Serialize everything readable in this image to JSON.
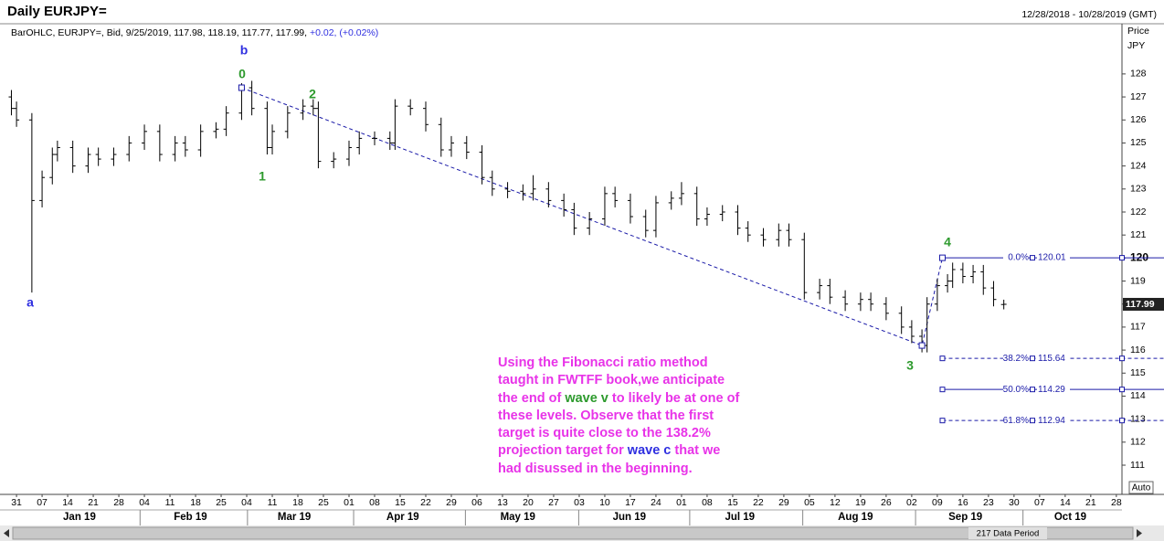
{
  "chart_data": {
    "type": "ohlc",
    "title": "Daily EURJPY=",
    "date_range": "12/28/2018 - 10/28/2019 (GMT)",
    "info": "BarOHLC, EURJPY=, Bid, 9/25/2019, 117.98, 118.19, 117.77, 117.99,",
    "change": "+0.02, (+0.02%)",
    "y_label": "Price",
    "y_unit": "JPY",
    "last_price": 117.99,
    "auto_button": "Auto",
    "data_period": "217 Data Period",
    "color": "#000000",
    "x": [
      -1,
      0,
      3,
      5,
      7,
      8,
      11,
      14,
      16,
      19,
      22,
      25,
      28,
      31,
      33,
      36,
      39,
      41,
      44,
      46,
      49,
      50,
      53,
      56,
      58,
      59,
      62,
      65,
      67,
      70,
      73,
      74,
      77,
      80,
      83,
      85,
      88,
      91,
      93,
      96,
      99,
      101,
      104,
      107,
      109,
      112,
      115,
      117,
      120,
      123,
      125,
      128,
      130,
      133,
      135,
      138,
      141,
      143,
      146,
      149,
      151,
      154,
      157,
      159,
      162,
      165,
      167,
      170,
      173,
      175,
      177,
      178,
      180,
      182,
      183,
      185,
      187,
      189,
      191,
      193
    ],
    "open": [
      127.0,
      126.5,
      126.0,
      122.5,
      123.5,
      124.5,
      124.8,
      124.0,
      124.5,
      124.3,
      124.5,
      125.0,
      125.5,
      124.5,
      125.0,
      124.7,
      125.5,
      125.6,
      126.3,
      127.4,
      126.5,
      124.8,
      125.5,
      126.3,
      126.6,
      126.5,
      124.2,
      124.3,
      124.8,
      125.2,
      125.2,
      125.0,
      126.6,
      126.5,
      125.8,
      124.7,
      125.0,
      124.6,
      123.5,
      123.0,
      122.9,
      122.8,
      123.0,
      122.5,
      122.1,
      121.3,
      121.7,
      122.8,
      122.5,
      121.8,
      121.2,
      122.4,
      122.6,
      122.8,
      121.7,
      121.9,
      122.0,
      121.3,
      121.0,
      120.8,
      121.2,
      120.8,
      118.5,
      118.8,
      118.3,
      118.0,
      118.2,
      118.0,
      117.6,
      117.0,
      116.6,
      116.2,
      118.0,
      118.8,
      119.0,
      119.5,
      119.2,
      119.4,
      118.7,
      117.98
    ],
    "high": [
      127.3,
      126.8,
      126.3,
      123.8,
      124.8,
      125.1,
      125.1,
      124.8,
      124.8,
      124.8,
      125.3,
      125.8,
      125.8,
      125.3,
      125.3,
      125.8,
      125.9,
      126.6,
      127.6,
      127.7,
      126.8,
      125.8,
      126.6,
      126.9,
      126.9,
      126.8,
      124.6,
      125.1,
      125.5,
      125.5,
      125.5,
      126.9,
      126.9,
      126.8,
      126.1,
      125.3,
      125.3,
      124.9,
      123.8,
      123.3,
      123.2,
      123.6,
      123.3,
      122.8,
      122.4,
      122.0,
      123.1,
      123.1,
      122.8,
      122.1,
      122.7,
      122.9,
      123.3,
      123.1,
      122.2,
      122.3,
      122.3,
      121.6,
      121.3,
      121.5,
      121.5,
      121.1,
      119.1,
      119.1,
      118.6,
      118.5,
      118.5,
      118.3,
      117.9,
      117.3,
      116.9,
      118.3,
      119.1,
      119.3,
      119.8,
      119.8,
      119.7,
      119.7,
      119.0,
      118.19
    ],
    "low": [
      126.2,
      125.7,
      118.5,
      122.2,
      123.2,
      124.2,
      123.7,
      123.7,
      124.0,
      124.0,
      124.2,
      124.7,
      124.2,
      124.2,
      124.4,
      124.4,
      125.2,
      125.3,
      126.0,
      126.2,
      124.5,
      124.5,
      125.2,
      126.0,
      126.2,
      123.9,
      123.9,
      124.0,
      124.5,
      124.9,
      124.7,
      124.7,
      126.2,
      125.5,
      124.4,
      124.4,
      124.3,
      123.2,
      122.7,
      122.6,
      122.5,
      122.5,
      122.2,
      121.8,
      121.0,
      121.0,
      121.4,
      122.2,
      121.5,
      120.9,
      120.9,
      122.1,
      122.3,
      121.4,
      121.4,
      121.6,
      121.0,
      120.7,
      120.5,
      120.5,
      120.5,
      118.2,
      118.2,
      118.0,
      117.7,
      117.7,
      117.7,
      117.3,
      116.7,
      116.3,
      115.9,
      115.9,
      117.7,
      118.5,
      118.7,
      118.9,
      118.9,
      118.4,
      117.9,
      117.77
    ],
    "close": [
      126.5,
      126.0,
      122.5,
      123.5,
      124.5,
      124.8,
      124.0,
      124.5,
      124.3,
      124.5,
      125.0,
      125.5,
      124.5,
      125.0,
      124.7,
      125.5,
      125.6,
      126.3,
      127.4,
      126.5,
      124.8,
      125.5,
      126.3,
      126.6,
      126.5,
      124.2,
      124.3,
      124.8,
      125.2,
      125.2,
      125.0,
      126.6,
      126.5,
      125.8,
      124.7,
      125.0,
      124.6,
      123.5,
      123.0,
      122.9,
      122.8,
      123.0,
      122.5,
      122.1,
      121.3,
      121.7,
      122.8,
      122.5,
      121.8,
      121.2,
      122.4,
      122.6,
      122.8,
      121.7,
      121.9,
      122.0,
      121.3,
      121.0,
      120.8,
      121.2,
      120.8,
      118.5,
      118.8,
      118.3,
      118.0,
      118.2,
      118.0,
      117.6,
      117.0,
      116.6,
      116.2,
      118.0,
      118.8,
      119.0,
      119.5,
      119.2,
      119.4,
      118.7,
      118.2,
      117.99
    ],
    "wave_path": {
      "x": [
        44,
        177,
        181
      ],
      "y": [
        127.4,
        116.2,
        120.01
      ],
      "color": "#1a1aa8"
    },
    "fib_levels": [
      {
        "ratio": "0.0%",
        "value": 120.01,
        "style": "solid"
      },
      {
        "ratio": "38.2%",
        "value": 115.64,
        "style": "dashed"
      },
      {
        "ratio": "50.0%",
        "value": 114.29,
        "style": "solid"
      },
      {
        "ratio": "61.8%",
        "value": 112.94,
        "style": "dashed"
      }
    ],
    "fib_start": 181,
    "wave_labels": [
      "a",
      "b",
      "0",
      "1",
      "2",
      "3",
      "4"
    ],
    "note": [
      "Using the Fibonacci ratio method",
      "taught in FWTFF book,we anticipate",
      "the end of ",
      "wave v",
      " to likely be at one of",
      "these levels. Observe that the first",
      "target is quite close to the 138.2%",
      "projection target for ",
      "wave c",
      " that we",
      "had disussed in the beginning."
    ],
    "xlim": [
      -1.8,
      216.1
    ],
    "ylim": [
      109.73,
      130.1
    ],
    "yticks": [
      111,
      112,
      113,
      114,
      115,
      116,
      117,
      118,
      119,
      120,
      121,
      122,
      123,
      124,
      125,
      126,
      127,
      128
    ],
    "xticks": [
      {
        "value": 0,
        "label": "31"
      },
      {
        "value": 5,
        "label": "07"
      },
      {
        "value": 10,
        "label": "14"
      },
      {
        "value": 15,
        "label": "21"
      },
      {
        "value": 20,
        "label": "28"
      },
      {
        "value": 25,
        "label": "04"
      },
      {
        "value": 30,
        "label": "11"
      },
      {
        "value": 35,
        "label": "18"
      },
      {
        "value": 40,
        "label": "25"
      },
      {
        "value": 45,
        "label": "04"
      },
      {
        "value": 50,
        "label": "11"
      },
      {
        "value": 55,
        "label": "18"
      },
      {
        "value": 60,
        "label": "25"
      },
      {
        "value": 65,
        "label": "01"
      },
      {
        "value": 70,
        "label": "08"
      },
      {
        "value": 75,
        "label": "15"
      },
      {
        "value": 80,
        "label": "22"
      },
      {
        "value": 85,
        "label": "29"
      },
      {
        "value": 90,
        "label": "06"
      },
      {
        "value": 95,
        "label": "13"
      },
      {
        "value": 100,
        "label": "20"
      },
      {
        "value": 105,
        "label": "27"
      },
      {
        "value": 110,
        "label": "03"
      },
      {
        "value": 115,
        "label": "10"
      },
      {
        "value": 120,
        "label": "17"
      },
      {
        "value": 125,
        "label": "24"
      },
      {
        "value": 130,
        "label": "01"
      },
      {
        "value": 135,
        "label": "08"
      },
      {
        "value": 140,
        "label": "15"
      },
      {
        "value": 145,
        "label": "22"
      },
      {
        "value": 150,
        "label": "29"
      },
      {
        "value": 155,
        "label": "05"
      },
      {
        "value": 160,
        "label": "12"
      },
      {
        "value": 165,
        "label": "19"
      },
      {
        "value": 170,
        "label": "26"
      },
      {
        "value": 175,
        "label": "02"
      },
      {
        "value": 180,
        "label": "09"
      },
      {
        "value": 185,
        "label": "16"
      },
      {
        "value": 190,
        "label": "23"
      },
      {
        "value": 195,
        "label": "30"
      },
      {
        "value": 200,
        "label": "07"
      },
      {
        "value": 205,
        "label": "14"
      },
      {
        "value": 210,
        "label": "21"
      },
      {
        "value": 215,
        "label": "28"
      }
    ],
    "month_ticks": [
      {
        "value": 12.3,
        "label": "Jan 19"
      },
      {
        "value": 34,
        "label": "Feb 19"
      },
      {
        "value": 54.3,
        "label": "Mar 19"
      },
      {
        "value": 75.5,
        "label": "Apr 19"
      },
      {
        "value": 98,
        "label": "May 19"
      },
      {
        "value": 119.8,
        "label": "Jun 19"
      },
      {
        "value": 141.4,
        "label": "Jul 19"
      },
      {
        "value": 164,
        "label": "Aug 19"
      },
      {
        "value": 185.5,
        "label": "Sep 19"
      },
      {
        "value": 206,
        "label": "Oct 19"
      }
    ]
  }
}
